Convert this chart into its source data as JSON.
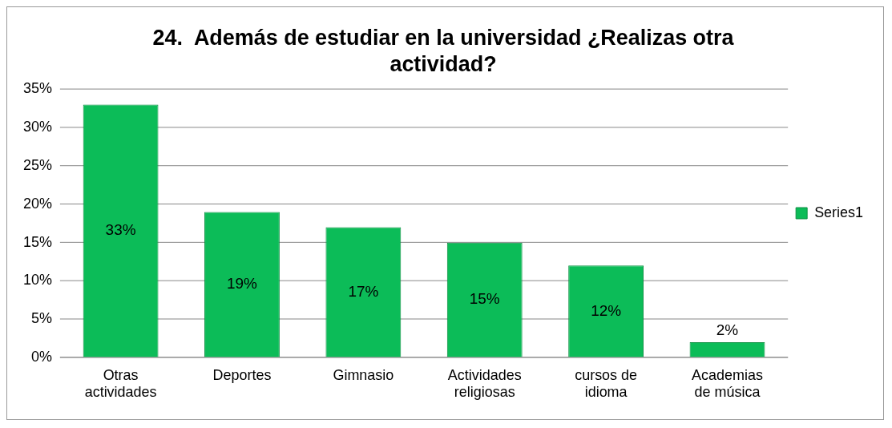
{
  "chart_data": {
    "type": "bar",
    "title": "24.  Además de estudiar en la universidad ¿Realizas otra actividad?",
    "categories": [
      "Otras actividades",
      "Deportes",
      "Gimnasio",
      "Actividades religiosas",
      "cursos de idioma",
      "Academias de música"
    ],
    "series": [
      {
        "name": "Series1",
        "color": "#0cbc58",
        "values": [
          33,
          19,
          17,
          15,
          12,
          2
        ],
        "value_labels": [
          "33%",
          "19%",
          "17%",
          "15%",
          "12%",
          "2%"
        ]
      }
    ],
    "ylim": [
      0,
      35
    ],
    "yticks": [
      {
        "value": 0,
        "label": "0%"
      },
      {
        "value": 5,
        "label": "5%"
      },
      {
        "value": 10,
        "label": "10%"
      },
      {
        "value": 15,
        "label": "15%"
      },
      {
        "value": 20,
        "label": "20%"
      },
      {
        "value": 25,
        "label": "25%"
      },
      {
        "value": 30,
        "label": "30%"
      },
      {
        "value": 35,
        "label": "35%"
      }
    ],
    "grid": "y",
    "legend": "right"
  }
}
